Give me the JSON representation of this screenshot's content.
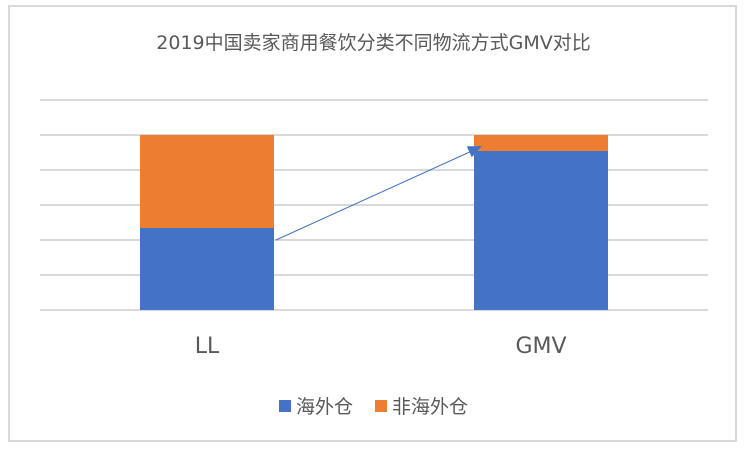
{
  "chart_data": {
    "type": "bar",
    "stacked": "percent",
    "title": "2019中国卖家商用餐饮分类不同物流方式GMV对比",
    "categories": [
      "LL",
      "GMV"
    ],
    "series": [
      {
        "name": "海外仓",
        "color": "#4472c4",
        "values": [
          0.47,
          0.91
        ]
      },
      {
        "name": "非海外仓",
        "color": "#ed7d31",
        "values": [
          0.53,
          0.09
        ]
      }
    ],
    "xlabel": "",
    "ylabel": "",
    "ylim": [
      0,
      1.2
    ],
    "ytick_step": 0.2,
    "ytick_labels_visible": false,
    "grid": true,
    "legend_position": "bottom",
    "annotations": [
      {
        "type": "arrow",
        "from": "LL 海外仓 top",
        "to": "GMV 海外仓 top",
        "color": "#4472c4"
      }
    ]
  },
  "legend": {
    "items": [
      {
        "label": "海外仓",
        "color": "#4472c4"
      },
      {
        "label": "非海外仓",
        "color": "#ed7d31"
      }
    ]
  }
}
